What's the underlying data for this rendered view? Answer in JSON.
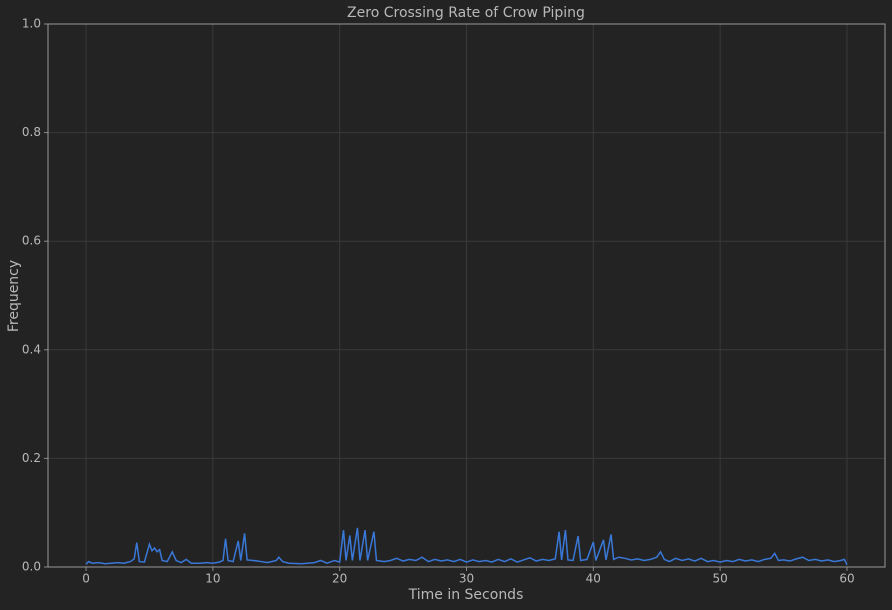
{
  "chart_data": {
    "type": "line",
    "title": "Zero Crossing Rate of Crow Piping",
    "xlabel": "Time in Seconds",
    "ylabel": "Frequency",
    "color": "#3a78d8",
    "grid": true,
    "xlim": [
      -3,
      63
    ],
    "xticks": [
      0,
      10,
      20,
      30,
      40,
      50,
      60
    ],
    "ylim": [
      0,
      1
    ],
    "yticks": [
      {
        "value": 0,
        "label": "0.0"
      },
      0.2,
      0.4,
      0.6,
      0.8,
      {
        "value": 1,
        "label": "1.0"
      }
    ],
    "x": [
      0,
      0.2,
      0.5,
      1,
      1.5,
      2,
      2.5,
      3,
      3.5,
      3.8,
      4,
      4.2,
      4.6,
      5,
      5.2,
      5.4,
      5.6,
      5.8,
      6,
      6.4,
      6.8,
      7.1,
      7.5,
      7.9,
      8.3,
      9,
      9.5,
      10,
      10.5,
      10.8,
      11,
      11.2,
      11.6,
      12,
      12.2,
      12.5,
      12.7,
      13.2,
      13.8,
      14.3,
      15,
      15.2,
      15.5,
      16,
      17,
      18,
      18.5,
      19,
      19.6,
      20,
      20.3,
      20.5,
      20.8,
      21,
      21.4,
      21.6,
      22,
      22.2,
      22.7,
      22.9,
      23.5,
      24,
      24.5,
      25,
      25.5,
      26,
      26.5,
      27,
      27.5,
      28,
      28.5,
      29,
      29.5,
      30,
      30.5,
      31,
      31.5,
      32,
      32.5,
      33,
      33.5,
      34,
      34.5,
      35,
      35.5,
      36,
      36.5,
      37,
      37.3,
      37.5,
      37.8,
      38,
      38.4,
      38.8,
      39,
      39.5,
      40,
      40.2,
      40.8,
      41,
      41.4,
      41.6,
      42,
      42.5,
      43,
      43.5,
      44,
      44.5,
      45,
      45.3,
      45.6,
      46,
      46.5,
      47,
      47.5,
      48,
      48.5,
      49,
      49.5,
      50,
      50.5,
      51,
      51.5,
      52,
      52.5,
      53,
      53.5,
      54,
      54.3,
      54.6,
      55,
      55.5,
      56,
      56.5,
      57,
      57.5,
      58,
      58.5,
      59,
      59.5,
      59.8,
      60
    ],
    "values": [
      0.005,
      0.01,
      0.007,
      0.008,
      0.006,
      0.007,
      0.008,
      0.007,
      0.01,
      0.015,
      0.045,
      0.01,
      0.009,
      0.042,
      0.03,
      0.035,
      0.028,
      0.032,
      0.012,
      0.01,
      0.028,
      0.012,
      0.008,
      0.014,
      0.007,
      0.007,
      0.008,
      0.007,
      0.009,
      0.012,
      0.052,
      0.012,
      0.01,
      0.048,
      0.012,
      0.062,
      0.013,
      0.012,
      0.01,
      0.008,
      0.012,
      0.018,
      0.01,
      0.007,
      0.006,
      0.008,
      0.012,
      0.007,
      0.012,
      0.009,
      0.068,
      0.012,
      0.058,
      0.012,
      0.072,
      0.012,
      0.068,
      0.012,
      0.065,
      0.012,
      0.01,
      0.012,
      0.016,
      0.011,
      0.014,
      0.012,
      0.018,
      0.01,
      0.014,
      0.011,
      0.013,
      0.01,
      0.014,
      0.009,
      0.013,
      0.01,
      0.012,
      0.009,
      0.014,
      0.01,
      0.015,
      0.009,
      0.013,
      0.017,
      0.011,
      0.014,
      0.012,
      0.015,
      0.065,
      0.013,
      0.068,
      0.013,
      0.012,
      0.057,
      0.012,
      0.014,
      0.046,
      0.012,
      0.05,
      0.013,
      0.06,
      0.014,
      0.018,
      0.016,
      0.013,
      0.015,
      0.012,
      0.014,
      0.018,
      0.028,
      0.014,
      0.01,
      0.016,
      0.012,
      0.015,
      0.011,
      0.016,
      0.01,
      0.012,
      0.009,
      0.012,
      0.01,
      0.014,
      0.011,
      0.013,
      0.01,
      0.014,
      0.016,
      0.025,
      0.012,
      0.013,
      0.011,
      0.015,
      0.018,
      0.012,
      0.014,
      0.011,
      0.013,
      0.01,
      0.012,
      0.014,
      0.004
    ]
  }
}
